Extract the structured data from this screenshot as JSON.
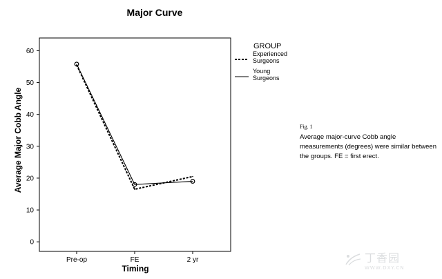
{
  "chart_data": {
    "type": "line",
    "title": "Major Curve",
    "xlabel": "Timing",
    "ylabel": "Average Major Cobb Angle",
    "categories": [
      "Pre-op",
      "FE",
      "2 yr"
    ],
    "ylim": [
      -3,
      64
    ],
    "yticks": [
      0,
      10,
      20,
      30,
      40,
      50,
      60
    ],
    "grid": false,
    "legend": {
      "title": "GROUP",
      "placement": "right"
    },
    "series": [
      {
        "name": "Experienced Surgeons",
        "values": [
          55.5,
          16.5,
          20.5
        ],
        "line_style": "dashed",
        "markers": false
      },
      {
        "name": "Young Surgeons",
        "values": [
          55.8,
          18.0,
          19.0
        ],
        "line_style": "solid",
        "markers": true
      }
    ]
  },
  "caption": {
    "label": "Fig. 1",
    "text": "Average major-curve Cobb angle measurements (degrees) were similar between the groups. FE = first erect."
  },
  "watermark": {
    "text": "丁香园",
    "subtext": "WWW.DXY.CN"
  }
}
